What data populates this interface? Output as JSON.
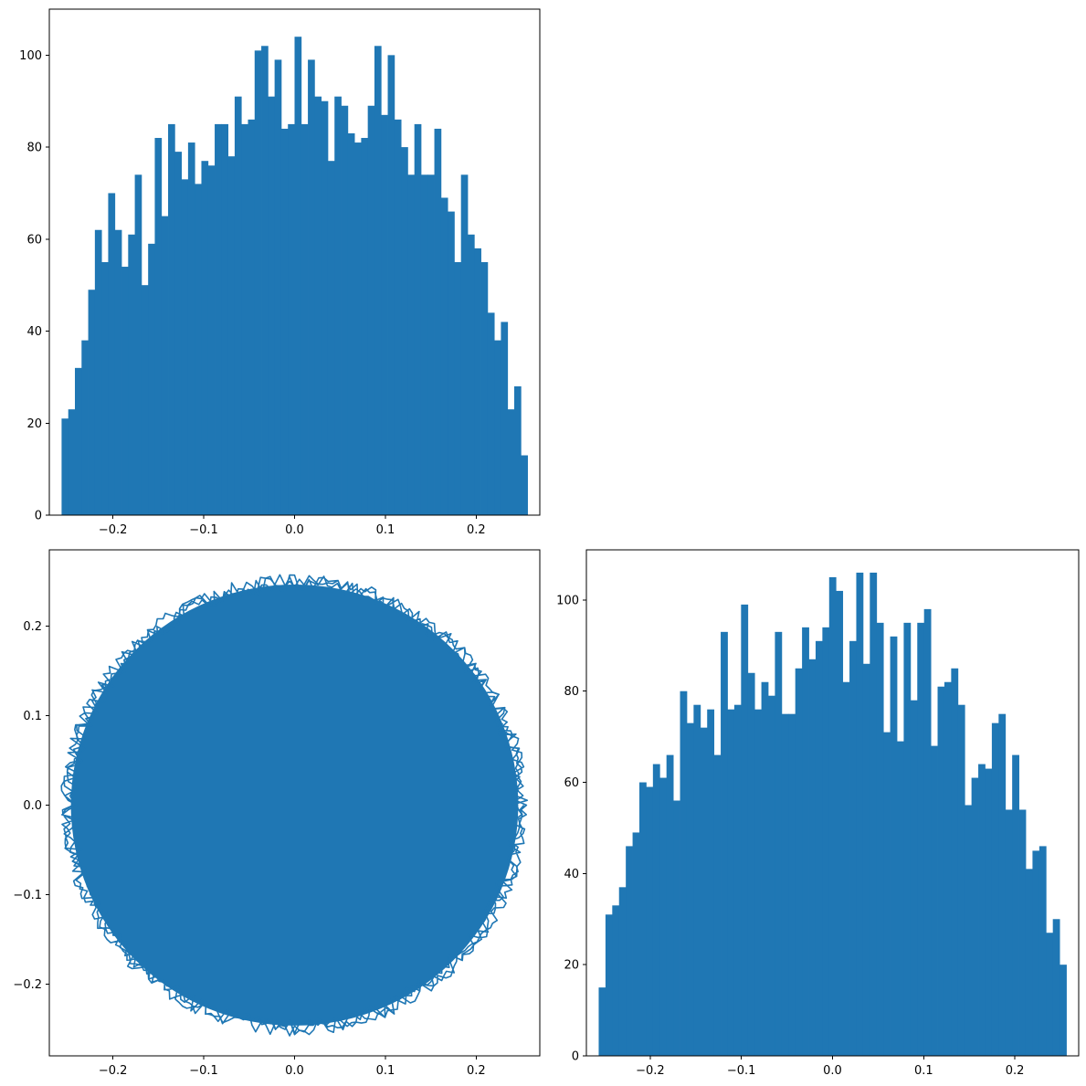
{
  "chart_data": [
    {
      "type": "bar",
      "panel": "top-left",
      "xlim": [
        -0.27,
        0.27
      ],
      "ylim": [
        0,
        110
      ],
      "xticks": [
        {
          "value": -0.2,
          "label": "−0.2"
        },
        {
          "value": -0.1,
          "label": "−0.1"
        },
        {
          "value": 0.0,
          "label": "0.0"
        },
        {
          "value": 0.1,
          "label": "0.1"
        },
        {
          "value": 0.2,
          "label": "0.2"
        }
      ],
      "yticks": [
        {
          "value": 0,
          "label": "0"
        },
        {
          "value": 20,
          "label": "20"
        },
        {
          "value": 40,
          "label": "40"
        },
        {
          "value": 60,
          "label": "60"
        },
        {
          "value": 80,
          "label": "80"
        },
        {
          "value": 100,
          "label": "100"
        }
      ],
      "bin_range": [
        -0.2565,
        0.2565
      ],
      "values": [
        21,
        23,
        32,
        38,
        49,
        62,
        55,
        70,
        62,
        54,
        61,
        74,
        50,
        59,
        82,
        65,
        85,
        79,
        73,
        81,
        72,
        77,
        76,
        85,
        85,
        78,
        91,
        85,
        86,
        101,
        102,
        91,
        99,
        84,
        85,
        104,
        85,
        99,
        91,
        90,
        77,
        91,
        89,
        83,
        81,
        82,
        89,
        102,
        87,
        100,
        86,
        80,
        74,
        85,
        74,
        74,
        84,
        69,
        66,
        55,
        74,
        61,
        58,
        55,
        44,
        38,
        42,
        23,
        28,
        13
      ],
      "grid": false,
      "color": "#1f77b4"
    },
    {
      "type": "line",
      "panel": "bottom-left",
      "description_shape": "dense circle",
      "radius": 0.2565,
      "xlim": [
        -0.27,
        0.27
      ],
      "ylim": [
        -0.28,
        0.285
      ],
      "xticks": [
        {
          "value": -0.2,
          "label": "−0.2"
        },
        {
          "value": -0.1,
          "label": "−0.1"
        },
        {
          "value": 0.0,
          "label": "0.0"
        },
        {
          "value": 0.1,
          "label": "0.1"
        },
        {
          "value": 0.2,
          "label": "0.2"
        }
      ],
      "yticks": [
        {
          "value": -0.2,
          "label": "−0.2"
        },
        {
          "value": -0.1,
          "label": "−0.1"
        },
        {
          "value": 0.0,
          "label": "0.0"
        },
        {
          "value": 0.1,
          "label": "0.1"
        },
        {
          "value": 0.2,
          "label": "0.2"
        }
      ],
      "grid": false,
      "color": "#1f77b4"
    },
    {
      "type": "bar",
      "panel": "bottom-right",
      "xlim": [
        -0.27,
        0.27
      ],
      "ylim": [
        0,
        111
      ],
      "xticks": [
        {
          "value": -0.2,
          "label": "−0.2"
        },
        {
          "value": -0.1,
          "label": "−0.1"
        },
        {
          "value": 0.0,
          "label": "0.0"
        },
        {
          "value": 0.1,
          "label": "0.1"
        },
        {
          "value": 0.2,
          "label": "0.2"
        }
      ],
      "yticks": [
        {
          "value": 0,
          "label": "0"
        },
        {
          "value": 20,
          "label": "20"
        },
        {
          "value": 40,
          "label": "40"
        },
        {
          "value": 60,
          "label": "60"
        },
        {
          "value": 80,
          "label": "80"
        },
        {
          "value": 100,
          "label": "100"
        }
      ],
      "bin_range": [
        -0.2565,
        0.2565
      ],
      "values": [
        15,
        31,
        33,
        37,
        46,
        49,
        60,
        59,
        64,
        61,
        66,
        56,
        80,
        73,
        77,
        72,
        76,
        66,
        93,
        76,
        77,
        99,
        84,
        76,
        82,
        79,
        93,
        75,
        75,
        85,
        94,
        87,
        91,
        94,
        105,
        102,
        82,
        91,
        106,
        86,
        106,
        95,
        71,
        92,
        69,
        95,
        78,
        95,
        98,
        68,
        81,
        82,
        85,
        77,
        55,
        61,
        64,
        63,
        73,
        75,
        54,
        66,
        54,
        41,
        45,
        46,
        27,
        30,
        20
      ],
      "grid": false,
      "color": "#1f77b4"
    }
  ]
}
